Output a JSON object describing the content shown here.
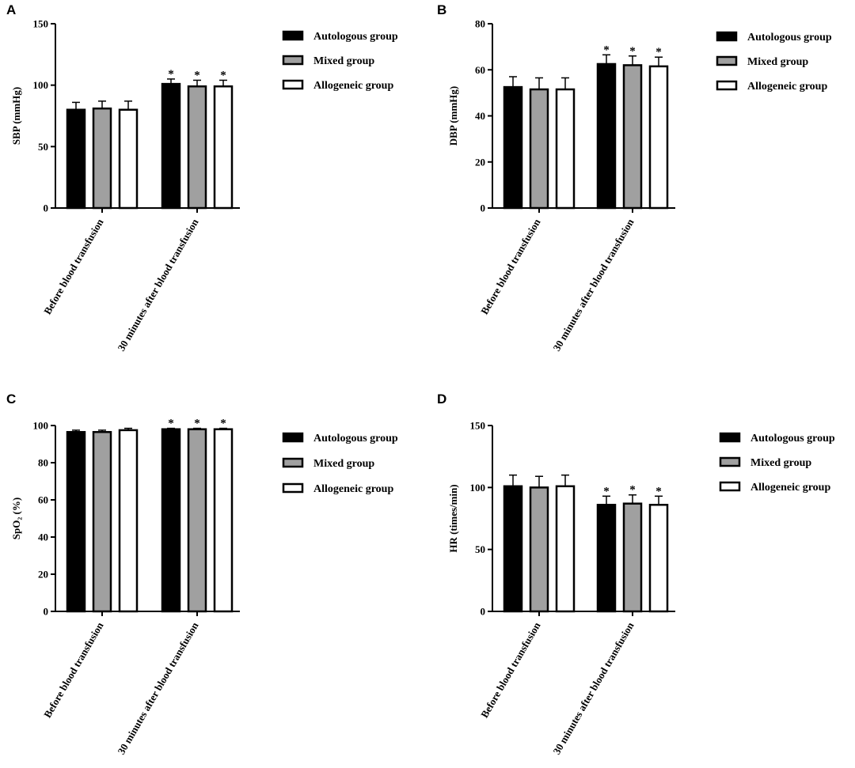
{
  "legend": [
    "Autologous group",
    "Mixed group",
    "Allogeneic group"
  ],
  "categories": [
    "Before blood transfusion",
    "30 minutes after blood transfusion"
  ],
  "colors": {
    "autologous": "#000000",
    "mixed": "#a0a0a0",
    "allogeneic": "#ffffff",
    "stroke": "#000000"
  },
  "chart_data": [
    {
      "panel": "A",
      "type": "bar",
      "ylabel": "SBP (mmHg)",
      "ylim": [
        0,
        150
      ],
      "yticks": [
        0,
        50,
        100,
        150
      ],
      "categories": [
        "Before blood transfusion",
        "30 minutes after blood transfusion"
      ],
      "series": [
        {
          "name": "Autologous group",
          "values": [
            80,
            101
          ],
          "errors": [
            6,
            4
          ]
        },
        {
          "name": "Mixed group",
          "values": [
            81,
            99
          ],
          "errors": [
            6,
            5
          ]
        },
        {
          "name": "Allogeneic group",
          "values": [
            80,
            99
          ],
          "errors": [
            7,
            5
          ]
        }
      ],
      "significance": [
        [
          "",
          "*"
        ],
        [
          "",
          "*"
        ],
        [
          "",
          "*"
        ]
      ],
      "legend_position": "right"
    },
    {
      "panel": "B",
      "type": "bar",
      "ylabel": "DBP (mmHg)",
      "ylim": [
        0,
        80
      ],
      "yticks": [
        0,
        20,
        40,
        60,
        80
      ],
      "categories": [
        "Before blood transfusion",
        "30 minutes after blood transfusion"
      ],
      "series": [
        {
          "name": "Autologous group",
          "values": [
            52.5,
            62.5
          ],
          "errors": [
            4.5,
            4
          ]
        },
        {
          "name": "Mixed group",
          "values": [
            51.5,
            62
          ],
          "errors": [
            5,
            4
          ]
        },
        {
          "name": "Allogeneic group",
          "values": [
            51.5,
            61.5
          ],
          "errors": [
            5,
            4
          ]
        }
      ],
      "significance": [
        [
          "",
          "*"
        ],
        [
          "",
          "*"
        ],
        [
          "",
          "*"
        ]
      ],
      "legend_position": "right"
    },
    {
      "panel": "C",
      "type": "bar",
      "ylabel": "SpO₂ (%)",
      "ylim": [
        0,
        100
      ],
      "yticks": [
        0,
        20,
        40,
        60,
        80,
        100
      ],
      "categories": [
        "Before blood transfusion",
        "30 minutes after blood transfusion"
      ],
      "series": [
        {
          "name": "Autologous group",
          "values": [
            96.5,
            98
          ],
          "errors": [
            1,
            0.5
          ]
        },
        {
          "name": "Mixed group",
          "values": [
            96.5,
            98
          ],
          "errors": [
            1,
            0.5
          ]
        },
        {
          "name": "Allogeneic group",
          "values": [
            97.5,
            98
          ],
          "errors": [
            1,
            0.5
          ]
        }
      ],
      "significance": [
        [
          "",
          "*"
        ],
        [
          "",
          "*"
        ],
        [
          "",
          "*"
        ]
      ],
      "legend_position": "right"
    },
    {
      "panel": "D",
      "type": "bar",
      "ylabel": "HR (times/min)",
      "ylim": [
        0,
        150
      ],
      "yticks": [
        0,
        50,
        100,
        150
      ],
      "categories": [
        "Before blood transfusion",
        "30 minutes after blood transfusion"
      ],
      "series": [
        {
          "name": "Autologous group",
          "values": [
            101,
            86
          ],
          "errors": [
            9,
            7
          ]
        },
        {
          "name": "Mixed group",
          "values": [
            100,
            87
          ],
          "errors": [
            9,
            7
          ]
        },
        {
          "name": "Allogeneic group",
          "values": [
            101,
            86
          ],
          "errors": [
            9,
            7
          ]
        }
      ],
      "significance": [
        [
          "",
          "*"
        ],
        [
          "",
          "*"
        ],
        [
          "",
          "*"
        ]
      ],
      "legend_position": "right"
    }
  ]
}
